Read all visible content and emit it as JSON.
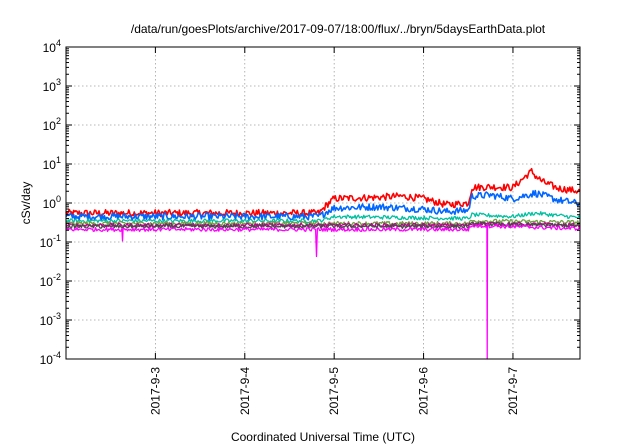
{
  "chart_data": {
    "type": "line",
    "title": "/data/run/goesPlots/archive/2017-09-07/18:00/flux/../bryn/5daysEarthData.plot",
    "xlabel": "Coordinated Universal Time (UTC)",
    "ylabel": "cSv/day",
    "yscale": "log",
    "ylim": [
      0.0001,
      10000
    ],
    "xlim": [
      "2017-09-02T00:00",
      "2017-09-07T18:00"
    ],
    "grid": true,
    "legend": "none",
    "yticks": [
      {
        "value": 0.0001,
        "base": "10",
        "exp": "-4"
      },
      {
        "value": 0.001,
        "base": "10",
        "exp": "-3"
      },
      {
        "value": 0.01,
        "base": "10",
        "exp": "-2"
      },
      {
        "value": 0.1,
        "base": "10",
        "exp": "-1"
      },
      {
        "value": 1,
        "base": "10",
        "exp": "0"
      },
      {
        "value": 10,
        "base": "10",
        "exp": "1"
      },
      {
        "value": 100,
        "base": "10",
        "exp": "2"
      },
      {
        "value": 1000,
        "base": "10",
        "exp": "3"
      },
      {
        "value": 10000,
        "base": "10",
        "exp": "4"
      }
    ],
    "xticks": [
      {
        "value": "2017-09-03T00:00",
        "label": "2017-9-3"
      },
      {
        "value": "2017-09-04T00:00",
        "label": "2017-9-4"
      },
      {
        "value": "2017-09-05T00:00",
        "label": "2017-9-5"
      },
      {
        "value": "2017-09-06T00:00",
        "label": "2017-9-6"
      },
      {
        "value": "2017-09-07T00:00",
        "label": "2017-9-7"
      }
    ],
    "series": [
      {
        "color": "#ff0000",
        "x": [
          "2017-09-02T00:00",
          "2017-09-04T20:00",
          "2017-09-04T22:00",
          "2017-09-05T00:00",
          "2017-09-05T06:00",
          "2017-09-05T12:00",
          "2017-09-05T18:00",
          "2017-09-06T00:00",
          "2017-09-06T06:00",
          "2017-09-06T12:00",
          "2017-09-06T13:00",
          "2017-09-06T18:00",
          "2017-09-07T00:00",
          "2017-09-07T03:00",
          "2017-09-07T05:00",
          "2017-09-07T06:00",
          "2017-09-07T08:00",
          "2017-09-07T12:00",
          "2017-09-07T18:00"
        ],
        "y": [
          0.55,
          0.55,
          0.9,
          1.3,
          1.35,
          1.4,
          1.5,
          1.3,
          0.9,
          1.0,
          2.5,
          2.6,
          2.5,
          4.5,
          6.5,
          5.0,
          3.5,
          2.4,
          2.0
        ]
      },
      {
        "color": "#0066ff",
        "x": [
          "2017-09-02T00:00",
          "2017-09-04T20:00",
          "2017-09-04T22:00",
          "2017-09-05T00:00",
          "2017-09-05T12:00",
          "2017-09-06T00:00",
          "2017-09-06T06:00",
          "2017-09-06T12:00",
          "2017-09-06T13:00",
          "2017-09-06T18:00",
          "2017-09-07T00:00",
          "2017-09-07T06:00",
          "2017-09-07T12:00",
          "2017-09-07T18:00"
        ],
        "y": [
          0.45,
          0.45,
          0.6,
          0.75,
          0.8,
          0.7,
          0.6,
          0.65,
          1.5,
          1.6,
          1.3,
          1.8,
          1.2,
          0.95
        ]
      },
      {
        "color": "#00c0a0",
        "x": [
          "2017-09-02T00:00",
          "2017-09-04T20:00",
          "2017-09-05T00:00",
          "2017-09-06T12:00",
          "2017-09-06T13:00",
          "2017-09-07T00:00",
          "2017-09-07T06:00",
          "2017-09-07T18:00"
        ],
        "y": [
          0.35,
          0.35,
          0.45,
          0.4,
          0.5,
          0.45,
          0.55,
          0.42
        ]
      },
      {
        "color": "#70a040",
        "x": [
          "2017-09-02T00:00",
          "2017-09-06T12:00",
          "2017-09-06T13:00",
          "2017-09-07T18:00"
        ],
        "y": [
          0.3,
          0.3,
          0.35,
          0.32
        ]
      },
      {
        "color": "#c00090",
        "x": [
          "2017-09-02T00:00",
          "2017-09-06T12:00",
          "2017-09-06T13:00",
          "2017-09-07T18:00"
        ],
        "y": [
          0.27,
          0.27,
          0.3,
          0.27
        ]
      },
      {
        "color": "#4a4a4a",
        "x": [
          "2017-09-02T00:00",
          "2017-09-06T12:00",
          "2017-09-06T13:00",
          "2017-09-07T18:00"
        ],
        "y": [
          0.25,
          0.25,
          0.29,
          0.26
        ]
      },
      {
        "color": "#ff00ff",
        "x": [
          "2017-09-02T00:00",
          "2017-09-02T15:00",
          "2017-09-02T15:10",
          "2017-09-02T15:20",
          "2017-09-04T19:00",
          "2017-09-04T19:15",
          "2017-09-04T19:30",
          "2017-09-06T12:00",
          "2017-09-06T13:00",
          "2017-09-06T17:00",
          "2017-09-06T17:05",
          "2017-09-06T17:10",
          "2017-09-07T18:00"
        ],
        "y": [
          0.21,
          0.21,
          0.12,
          0.21,
          0.21,
          0.045,
          0.21,
          0.21,
          0.26,
          0.26,
          0.0001,
          0.26,
          0.22
        ]
      }
    ]
  }
}
